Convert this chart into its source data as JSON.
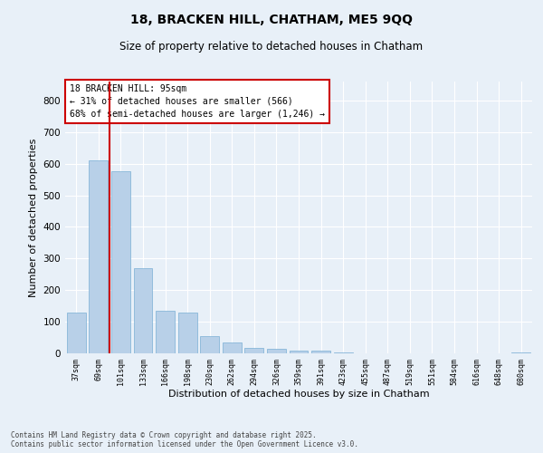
{
  "title1": "18, BRACKEN HILL, CHATHAM, ME5 9QQ",
  "title2": "Size of property relative to detached houses in Chatham",
  "xlabel": "Distribution of detached houses by size in Chatham",
  "ylabel": "Number of detached properties",
  "footer1": "Contains HM Land Registry data © Crown copyright and database right 2025.",
  "footer2": "Contains public sector information licensed under the Open Government Licence v3.0.",
  "categories": [
    "37sqm",
    "69sqm",
    "101sqm",
    "133sqm",
    "166sqm",
    "198sqm",
    "230sqm",
    "262sqm",
    "294sqm",
    "326sqm",
    "359sqm",
    "391sqm",
    "423sqm",
    "455sqm",
    "487sqm",
    "519sqm",
    "551sqm",
    "584sqm",
    "616sqm",
    "648sqm",
    "680sqm"
  ],
  "values": [
    130,
    610,
    575,
    270,
    135,
    130,
    55,
    35,
    18,
    15,
    10,
    8,
    2,
    1,
    1,
    1,
    0,
    0,
    0,
    0,
    3
  ],
  "bar_color": "#b8d0e8",
  "bar_edge_color": "#7aafd4",
  "bg_color": "#e8f0f8",
  "grid_color": "#ffffff",
  "annotation_title": "18 BRACKEN HILL: 95sqm",
  "annotation_line1": "← 31% of detached houses are smaller (566)",
  "annotation_line2": "68% of semi-detached houses are larger (1,246) →",
  "vline_color": "#cc0000",
  "annotation_box_color": "#cc0000",
  "ylim": [
    0,
    860
  ],
  "yticks": [
    0,
    100,
    200,
    300,
    400,
    500,
    600,
    700,
    800
  ]
}
